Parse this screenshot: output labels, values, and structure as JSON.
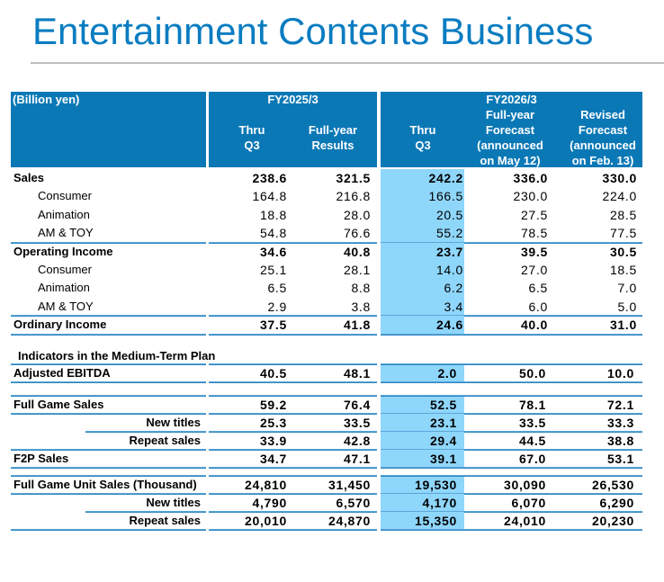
{
  "title": "Entertainment Contents Business",
  "colors": {
    "title": "#0a7cc1",
    "header_bg": "#0b78b6",
    "highlight": "#8fd6fb",
    "rule": "#1b76b5"
  },
  "table": {
    "unit": "(Billion yen)",
    "groups": [
      "FY2025/3",
      "FY2026/3"
    ],
    "columns": [
      {
        "lines": [
          "Thru",
          "Q3"
        ]
      },
      {
        "lines": [
          "Full-year",
          "Results"
        ]
      },
      {
        "lines": [
          "Thru",
          "Q3"
        ]
      },
      {
        "lines": [
          "Full-year",
          "Forecast",
          "(announced",
          "on May 12)"
        ]
      },
      {
        "lines": [
          "Revised",
          "Forecast",
          "(announced",
          "on Feb. 13)"
        ]
      }
    ],
    "rows": [
      {
        "label": "Sales",
        "values": [
          "238.6",
          "321.5",
          "242.2",
          "336.0",
          "330.0"
        ]
      },
      {
        "label": "Consumer",
        "values": [
          "164.8",
          "216.8",
          "166.5",
          "230.0",
          "224.0"
        ]
      },
      {
        "label": "Animation",
        "values": [
          "18.8",
          "28.0",
          "20.5",
          "27.5",
          "28.5"
        ]
      },
      {
        "label": "AM & TOY",
        "values": [
          "54.8",
          "76.6",
          "55.2",
          "78.5",
          "77.5"
        ]
      },
      {
        "label": "Operating Income",
        "values": [
          "34.6",
          "40.8",
          "23.7",
          "39.5",
          "30.5"
        ]
      },
      {
        "label": "Consumer",
        "values": [
          "25.1",
          "28.1",
          "14.0",
          "27.0",
          "18.5"
        ]
      },
      {
        "label": "Animation",
        "values": [
          "6.5",
          "8.8",
          "6.2",
          "6.5",
          "7.0"
        ]
      },
      {
        "label": "AM & TOY",
        "values": [
          "2.9",
          "3.8",
          "3.4",
          "6.0",
          "5.0"
        ]
      },
      {
        "label": "Ordinary Income",
        "values": [
          "37.5",
          "41.8",
          "24.6",
          "40.0",
          "31.0"
        ]
      }
    ],
    "section_title": "Indicators in the Medium-Term Plan",
    "indicator_rows": [
      {
        "label": "Adjusted EBITDA",
        "values": [
          "40.5",
          "48.1",
          "2.0",
          "50.0",
          "10.0"
        ]
      },
      {
        "label": "Full Game Sales",
        "values": [
          "59.2",
          "76.4",
          "52.5",
          "78.1",
          "72.1"
        ]
      },
      {
        "label": "New titles",
        "values": [
          "25.3",
          "33.5",
          "23.1",
          "33.5",
          "33.3"
        ]
      },
      {
        "label": "Repeat sales",
        "values": [
          "33.9",
          "42.8",
          "29.4",
          "44.5",
          "38.8"
        ]
      },
      {
        "label": "F2P Sales",
        "values": [
          "34.7",
          "47.1",
          "39.1",
          "67.0",
          "53.1"
        ]
      },
      {
        "label": "Full Game Unit Sales (Thousand)",
        "values": [
          "24,810",
          "31,450",
          "19,530",
          "30,090",
          "26,530"
        ]
      },
      {
        "label": "New titles",
        "values": [
          "4,790",
          "6,570",
          "4,170",
          "6,070",
          "6,290"
        ]
      },
      {
        "label": "Repeat sales",
        "values": [
          "20,010",
          "24,870",
          "15,350",
          "24,010",
          "20,230"
        ]
      }
    ]
  }
}
